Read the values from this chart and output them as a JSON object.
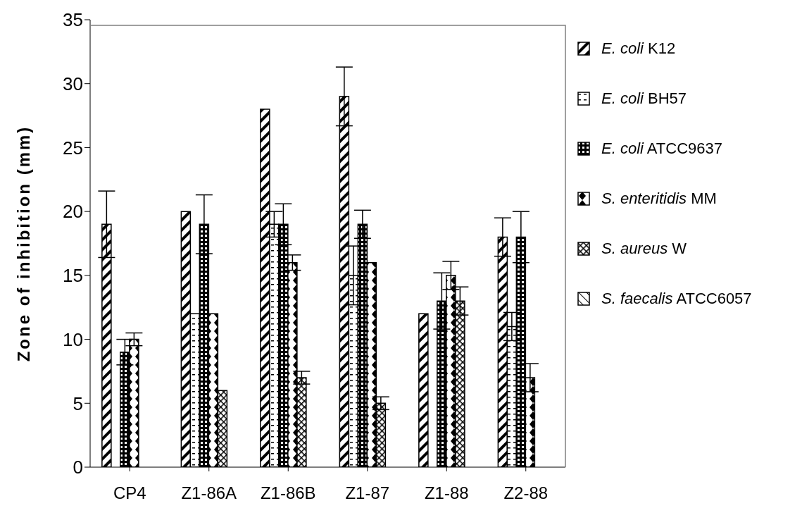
{
  "chart_data": {
    "type": "bar",
    "ylabel": "Zone of inhibition  (mm)",
    "categories": [
      "CP4",
      "Z1-86A",
      "Z1-86B",
      "Z1-87",
      "Z1-88",
      "Z2-88"
    ],
    "series": [
      {
        "name": "E. coli K12",
        "color": "#000000",
        "values": [
          19,
          20,
          28,
          29,
          12,
          18
        ],
        "errors": [
          2.6,
          null,
          null,
          2.3,
          null,
          1.5
        ]
      },
      {
        "name": "E. coli BH57",
        "color": "#000000",
        "values": [
          0,
          12,
          19,
          15,
          0,
          11
        ],
        "errors": [
          null,
          null,
          1,
          2.3,
          null,
          1.1
        ]
      },
      {
        "name": "E. coli ATCC9637",
        "color": "#000000",
        "values": [
          9,
          19,
          19,
          19,
          13,
          18
        ],
        "errors": [
          1,
          2.3,
          1.6,
          1.1,
          2.2,
          2
        ]
      },
      {
        "name": "S. enteritidis MM",
        "color": "#000000",
        "values": [
          10,
          12,
          16,
          16,
          15,
          7
        ],
        "errors": [
          0.5,
          null,
          0.6,
          null,
          1.1,
          1.1
        ]
      },
      {
        "name": "S. aureus W",
        "color": "#000000",
        "values": [
          0,
          6,
          7,
          5,
          13,
          0
        ],
        "errors": [
          null,
          null,
          0.5,
          0.5,
          1.1,
          null
        ]
      },
      {
        "name": "S. faecalis ATCC6057",
        "color": "#000000",
        "values": [
          0,
          0,
          0,
          0,
          0,
          0
        ]
      }
    ],
    "ylim": [
      0,
      35
    ],
    "yticks": [
      0,
      5,
      10,
      15,
      20,
      25,
      30,
      35
    ],
    "grid": false,
    "legend": "right"
  }
}
